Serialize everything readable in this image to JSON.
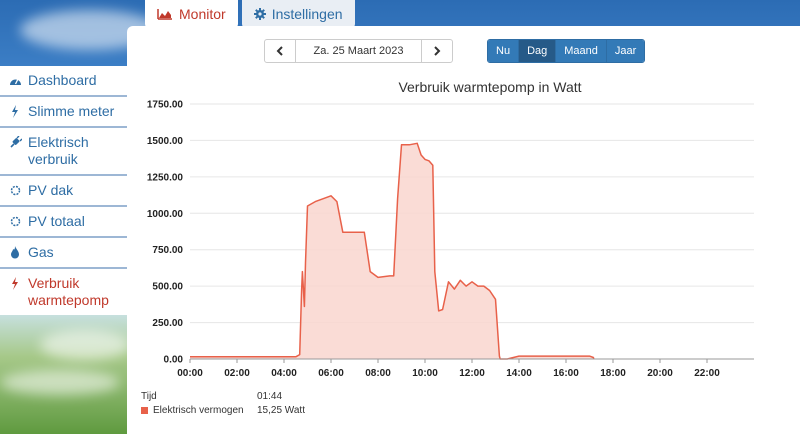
{
  "tabs": [
    {
      "label": "Monitor",
      "icon": "area-chart-icon",
      "active": true
    },
    {
      "label": "Instellingen",
      "icon": "gear-icon",
      "active": false
    }
  ],
  "sidebar": {
    "items": [
      {
        "label": "Dashboard",
        "icon": "tachometer-icon"
      },
      {
        "label": "Slimme meter",
        "icon": "bolt-icon"
      },
      {
        "label": "Elektrisch verbruik",
        "icon": "plug-icon"
      },
      {
        "label": "PV dak",
        "icon": "sun-icon"
      },
      {
        "label": "PV totaal",
        "icon": "sun-icon"
      },
      {
        "label": "Gas",
        "icon": "flame-icon"
      },
      {
        "label": "Verbruik warmtepomp",
        "icon": "bolt-icon",
        "active": true
      }
    ]
  },
  "datenav": {
    "prev_icon": "chevron-left-icon",
    "date": "Za. 25 Maart 2023",
    "next_icon": "chevron-right-icon"
  },
  "period": {
    "options": [
      "Nu",
      "Dag",
      "Maand",
      "Jaar"
    ],
    "selected": "Dag"
  },
  "tooltip": {
    "time_label": "Tijd",
    "time_value": "01:44",
    "series_label": "Elektrisch vermogen",
    "series_value": "15,25 Watt"
  },
  "colors": {
    "accent": "#c0392b",
    "series": "#e8614a",
    "fill": "#f9d6cf",
    "link": "#2e6da4"
  },
  "chart_data": {
    "type": "area",
    "title": "Verbruik warmtepomp in Watt",
    "xlabel": "",
    "ylabel": "",
    "ylim": [
      0,
      1750
    ],
    "xlim": [
      "00:00",
      "24:00"
    ],
    "y_ticks": [
      "0.00",
      "250.00",
      "500.00",
      "750.00",
      "1000.00",
      "1250.00",
      "1500.00",
      "1750.00"
    ],
    "x_ticks": [
      "00:00",
      "02:00",
      "04:00",
      "06:00",
      "08:00",
      "10:00",
      "12:00",
      "14:00",
      "16:00",
      "18:00",
      "20:00",
      "22:00"
    ],
    "grid": true,
    "series": [
      {
        "name": "Elektrisch vermogen",
        "x": [
          "00:00",
          "00:30",
          "01:00",
          "01:44",
          "02:00",
          "02:30",
          "03:00",
          "03:30",
          "04:00",
          "04:30",
          "04:40",
          "04:45",
          "04:47",
          "04:52",
          "04:55",
          "05:00",
          "05:20",
          "05:40",
          "06:00",
          "06:15",
          "06:30",
          "07:00",
          "07:25",
          "07:40",
          "08:00",
          "08:30",
          "08:40",
          "08:50",
          "09:00",
          "09:20",
          "09:40",
          "09:50",
          "10:00",
          "10:10",
          "10:20",
          "10:25",
          "10:35",
          "10:45",
          "11:00",
          "11:15",
          "11:30",
          "11:45",
          "12:00",
          "12:15",
          "12:30",
          "12:45",
          "13:00",
          "13:10",
          "13:12",
          "13:30",
          "14:00",
          "14:30",
          "15:00",
          "15:30",
          "16:00",
          "16:30",
          "17:00",
          "17:10",
          "17:11"
        ],
        "y": [
          15,
          15,
          15,
          15,
          15,
          15,
          15,
          15,
          15,
          15,
          30,
          470,
          600,
          360,
          660,
          1050,
          1080,
          1100,
          1120,
          1080,
          870,
          870,
          870,
          600,
          560,
          570,
          570,
          1100,
          1470,
          1470,
          1480,
          1400,
          1370,
          1360,
          1330,
          600,
          330,
          340,
          530,
          480,
          540,
          500,
          530,
          500,
          500,
          470,
          410,
          20,
          0,
          0,
          20,
          20,
          20,
          20,
          20,
          20,
          20,
          10,
          0
        ]
      }
    ]
  }
}
